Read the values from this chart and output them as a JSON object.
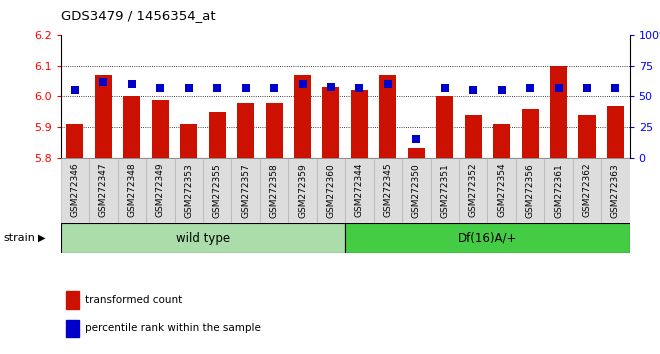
{
  "title": "GDS3479 / 1456354_at",
  "samples": [
    "GSM272346",
    "GSM272347",
    "GSM272348",
    "GSM272349",
    "GSM272353",
    "GSM272355",
    "GSM272357",
    "GSM272358",
    "GSM272359",
    "GSM272360",
    "GSM272344",
    "GSM272345",
    "GSM272350",
    "GSM272351",
    "GSM272352",
    "GSM272354",
    "GSM272356",
    "GSM272361",
    "GSM272362",
    "GSM272363"
  ],
  "red_values": [
    5.91,
    6.07,
    6.0,
    5.99,
    5.91,
    5.95,
    5.98,
    5.98,
    6.07,
    6.03,
    6.02,
    6.07,
    5.83,
    6.0,
    5.94,
    5.91,
    5.96,
    6.1,
    5.94,
    5.97
  ],
  "blue_values": [
    55,
    62,
    60,
    57,
    57,
    57,
    57,
    57,
    60,
    58,
    57,
    60,
    15,
    57,
    55,
    55,
    57,
    57,
    57,
    57
  ],
  "ylim_left": [
    5.8,
    6.2
  ],
  "ylim_right": [
    0,
    100
  ],
  "yticks_left": [
    5.8,
    5.9,
    6.0,
    6.1,
    6.2
  ],
  "yticks_right": [
    0,
    25,
    50,
    75,
    100
  ],
  "wild_type_count": 10,
  "df_count": 10,
  "wild_type_label": "wild type",
  "df_label": "Df(16)A/+",
  "strain_label": "strain",
  "legend_red": "transformed count",
  "legend_blue": "percentile rank within the sample",
  "bar_color": "#cc1100",
  "dot_color": "#0000cc",
  "wt_bg_color": "#aaddaa",
  "df_bg_color": "#44cc44",
  "tick_bg_color": "#dddddd",
  "bar_bottom": 5.8,
  "bar_width": 0.6,
  "dot_size": 30,
  "grid_lines": [
    5.9,
    6.0,
    6.1
  ]
}
